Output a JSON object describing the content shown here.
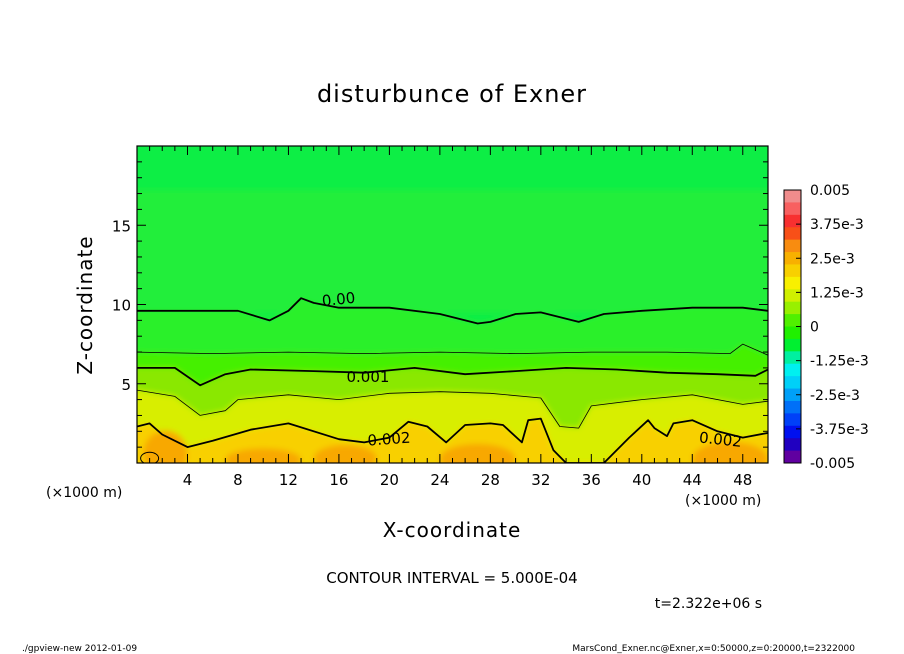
{
  "chart_data": {
    "type": "heatmap",
    "title": "disturbunce of Exner",
    "xlabel": "X-coordinate",
    "ylabel": "Z-coordinate",
    "x_unit": "(×1000 m)",
    "x_unit_right": "(×1000 m)",
    "xlim": [
      0,
      50
    ],
    "ylim": [
      0,
      20
    ],
    "xticks": [
      4,
      8,
      12,
      16,
      20,
      24,
      28,
      32,
      36,
      40,
      44,
      48
    ],
    "yticks": [
      5,
      10,
      15
    ],
    "colorbar": {
      "labels": [
        "0.005",
        "3.75e-3",
        "2.5e-3",
        "1.25e-3",
        "0",
        "-1.25e-3",
        "-2.5e-3",
        "-3.75e-3",
        "-0.005"
      ],
      "values": [
        0.005,
        0.00375,
        0.0025,
        0.00125,
        0,
        -0.00125,
        -0.0025,
        -0.00375,
        -0.005
      ],
      "colors": [
        "#f08c8c",
        "#f86060",
        "#f83030",
        "#f85018",
        "#f88c10",
        "#f8b000",
        "#f8d000",
        "#f8f000",
        "#d0f000",
        "#98f000",
        "#50f000",
        "#20f000",
        "#00f030",
        "#00f0a0",
        "#00f0f0",
        "#00d0f8",
        "#00a0f8",
        "#0070f8",
        "#0040f8",
        "#0010f0",
        "#2000c0",
        "#6000a0"
      ]
    },
    "contours": [
      {
        "label": "0.00",
        "level": 0.0,
        "thickness": "thick",
        "points": [
          [
            0,
            9.6
          ],
          [
            4,
            9.6
          ],
          [
            8,
            9.6
          ],
          [
            10.5,
            9.0
          ],
          [
            12,
            9.6
          ],
          [
            13,
            10.4
          ],
          [
            14,
            10.1
          ],
          [
            16,
            9.8
          ],
          [
            20,
            9.8
          ],
          [
            24,
            9.4
          ],
          [
            27,
            8.8
          ],
          [
            28,
            8.9
          ],
          [
            30,
            9.4
          ],
          [
            32,
            9.5
          ],
          [
            35,
            8.9
          ],
          [
            37,
            9.4
          ],
          [
            40,
            9.6
          ],
          [
            44,
            9.8
          ],
          [
            48,
            9.8
          ],
          [
            50,
            9.6
          ]
        ]
      },
      {
        "label": "",
        "level": 0.0005,
        "thickness": "thin",
        "points": [
          [
            0,
            7.0
          ],
          [
            6,
            6.9
          ],
          [
            12,
            7.0
          ],
          [
            18,
            6.9
          ],
          [
            24,
            7.0
          ],
          [
            30,
            6.9
          ],
          [
            36,
            7.0
          ],
          [
            42,
            7.0
          ],
          [
            47,
            6.9
          ],
          [
            48,
            7.5
          ],
          [
            50,
            6.8
          ]
        ]
      },
      {
        "label": "0.001",
        "level": 0.001,
        "thickness": "thick",
        "points": [
          [
            0,
            6.0
          ],
          [
            3,
            6.0
          ],
          [
            5,
            4.9
          ],
          [
            7,
            5.6
          ],
          [
            9,
            5.9
          ],
          [
            14,
            5.8
          ],
          [
            18,
            5.7
          ],
          [
            22,
            6.0
          ],
          [
            26,
            5.6
          ],
          [
            30,
            5.8
          ],
          [
            34,
            6.0
          ],
          [
            38,
            5.9
          ],
          [
            42,
            5.7
          ],
          [
            46,
            5.6
          ],
          [
            49,
            5.5
          ],
          [
            50,
            5.9
          ]
        ]
      },
      {
        "label": "",
        "level": 0.0015,
        "thickness": "thin",
        "points": [
          [
            0,
            4.6
          ],
          [
            3,
            4.2
          ],
          [
            5,
            3.0
          ],
          [
            7,
            3.3
          ],
          [
            8,
            4.0
          ],
          [
            12,
            4.3
          ],
          [
            16,
            4.0
          ],
          [
            20,
            4.4
          ],
          [
            24,
            4.5
          ],
          [
            28,
            4.4
          ],
          [
            32,
            4.1
          ],
          [
            33.5,
            2.3
          ],
          [
            35,
            2.2
          ],
          [
            36,
            3.6
          ],
          [
            40,
            4.0
          ],
          [
            44,
            4.3
          ],
          [
            48,
            3.7
          ],
          [
            50,
            3.9
          ]
        ]
      },
      {
        "label": "0.002",
        "level": 0.002,
        "thickness": "thick",
        "points": [
          [
            0,
            2.3
          ],
          [
            1,
            2.5
          ],
          [
            2,
            1.8
          ],
          [
            4,
            1.0
          ],
          [
            6,
            1.4
          ],
          [
            9,
            2.1
          ],
          [
            12,
            2.5
          ],
          [
            16,
            1.5
          ],
          [
            18,
            1.3
          ],
          [
            20,
            1.6
          ],
          [
            21.5,
            2.6
          ],
          [
            23,
            2.3
          ],
          [
            24.5,
            1.3
          ],
          [
            26,
            2.4
          ],
          [
            28,
            2.5
          ],
          [
            29,
            2.4
          ],
          [
            30.5,
            1.3
          ],
          [
            31,
            2.7
          ],
          [
            32,
            2.8
          ],
          [
            33,
            0.8
          ],
          [
            34,
            0
          ],
          [
            37,
            0
          ],
          [
            39,
            1.6
          ],
          [
            40.5,
            2.7
          ],
          [
            41,
            2.2
          ],
          [
            42,
            1.7
          ],
          [
            42.5,
            2.5
          ],
          [
            44,
            2.7
          ],
          [
            46,
            2.0
          ],
          [
            48,
            1.6
          ],
          [
            50,
            1.9
          ]
        ]
      }
    ],
    "interval_text": "CONTOUR INTERVAL = 5.000E-04",
    "time_text": "t=2.322e+06 s"
  },
  "footer": {
    "left": "./gpview-new   2012-01-09",
    "right": "MarsCond_Exner.nc@Exner,x=0:50000,z=0:20000,t=2322000"
  }
}
